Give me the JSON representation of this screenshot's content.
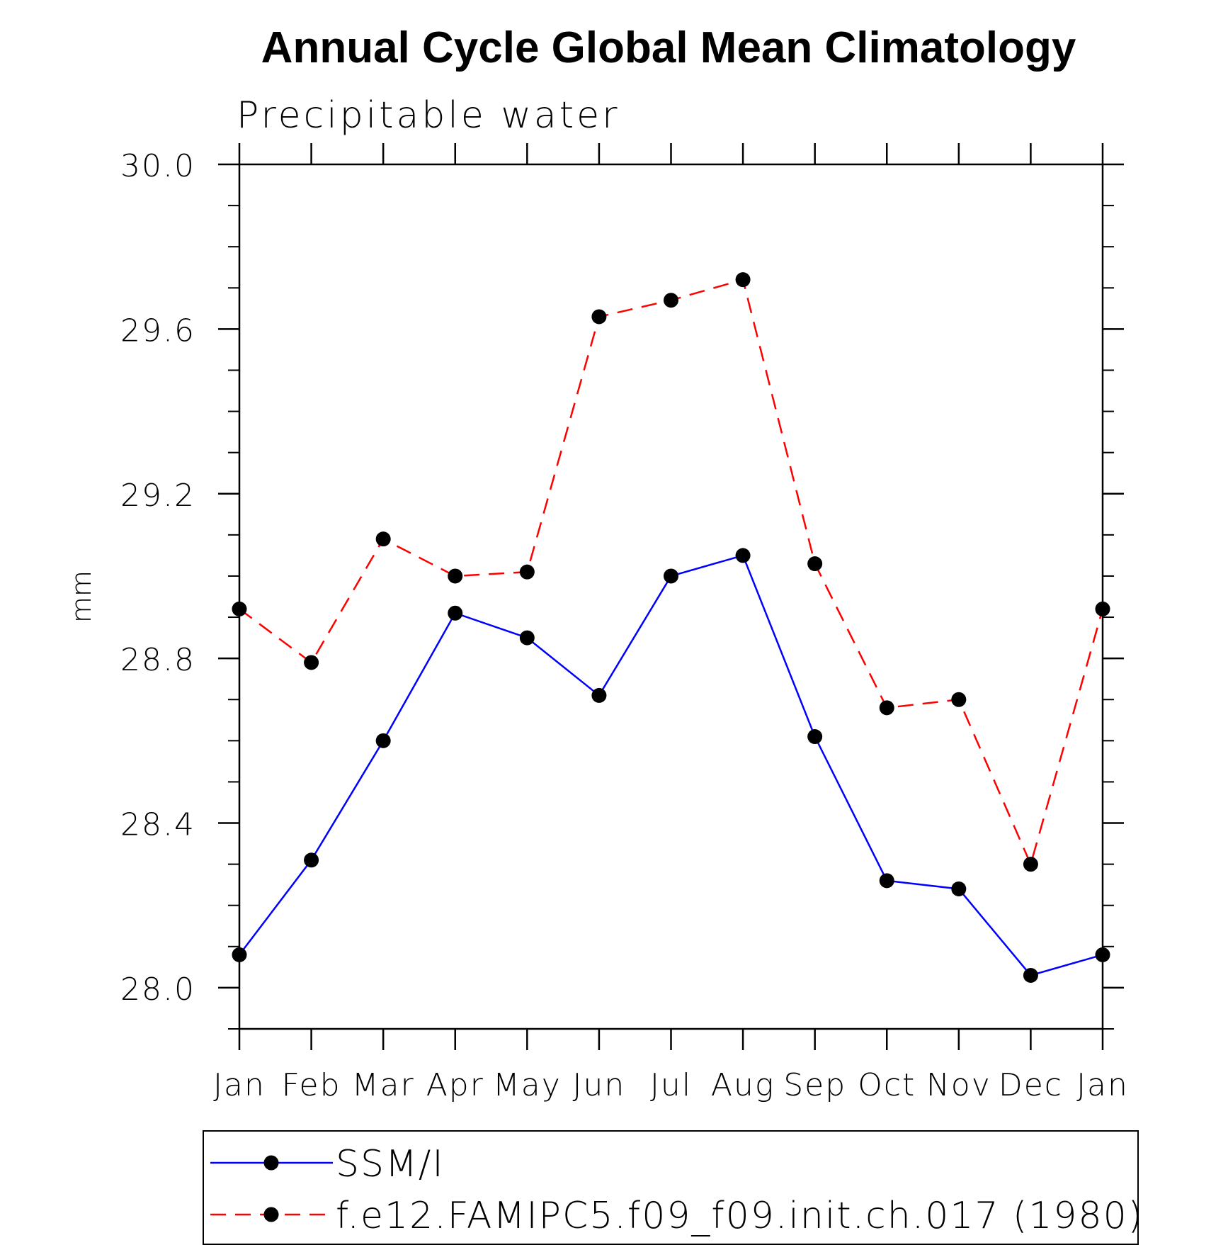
{
  "chart_data": {
    "type": "line",
    "title": "Annual Cycle Global Mean Climatology",
    "subtitle": "Precipitable water",
    "xlabel": "",
    "ylabel": "mm",
    "categories": [
      "Jan",
      "Feb",
      "Mar",
      "Apr",
      "May",
      "Jun",
      "Jul",
      "Aug",
      "Sep",
      "Oct",
      "Nov",
      "Dec",
      "Jan"
    ],
    "ylim": [
      27.9,
      30.0
    ],
    "yticks": [
      "28.0",
      "28.4",
      "28.8",
      "29.2",
      "29.6",
      "30.0"
    ],
    "ytick_values": [
      28.0,
      28.4,
      28.8,
      29.2,
      29.6,
      30.0
    ],
    "grid": false,
    "legend_position": "bottom",
    "series": [
      {
        "name": "SSM/I",
        "color": "#0000ff",
        "line_style": "solid",
        "marker": "filled-circle",
        "values": [
          28.08,
          28.31,
          28.6,
          28.91,
          28.85,
          28.71,
          29.0,
          29.05,
          28.61,
          28.26,
          28.24,
          28.03,
          28.08
        ]
      },
      {
        "name": "f.e12.FAMIPC5.f09_f09.init.ch.017 (1980)",
        "color": "#ff0000",
        "line_style": "dashed",
        "marker": "filled-circle",
        "values": [
          28.92,
          28.79,
          29.09,
          29.0,
          29.01,
          29.63,
          29.67,
          29.72,
          29.03,
          28.68,
          28.7,
          28.3,
          28.92
        ]
      }
    ]
  }
}
